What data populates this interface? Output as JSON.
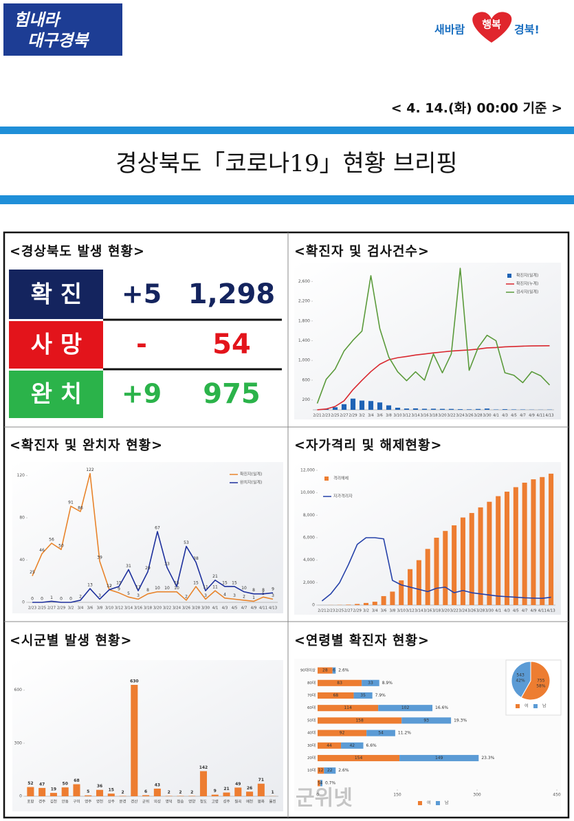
{
  "header": {
    "logo_left": [
      "힘내라",
      "대구경북"
    ],
    "logo_right": [
      "새바람",
      "행복",
      "경북!"
    ],
    "date": "< 4. 14.(화) 00:00 기준 >",
    "title": "경상북도「코로나19」현황 브리핑",
    "watermark": "군위넷"
  },
  "status": {
    "title": "<경상북도 발생 현황>",
    "rows": [
      {
        "label": "확 진",
        "change": "+5",
        "total": "1,298"
      },
      {
        "label": "사 망",
        "change": "-",
        "total": "54"
      },
      {
        "label": "완 치",
        "change": "+9",
        "total": "975"
      }
    ]
  },
  "chart_data": [
    {
      "type": "bar",
      "title": "<확진자 및 검사건수>",
      "categories": [
        "2/21",
        "2/23",
        "2/25",
        "2/27",
        "2/29",
        "3/2",
        "3/4",
        "3/6",
        "3/8",
        "3/10",
        "3/12",
        "3/14",
        "3/16",
        "3/18",
        "3/20",
        "3/22",
        "3/24",
        "3/26",
        "3/28",
        "3/30",
        "4/1",
        "4/3",
        "4/5",
        "4/7",
        "4/9",
        "4/11",
        "4/13"
      ],
      "series": [
        {
          "name": "확진자(일계)",
          "type": "bar",
          "color": "#1f63b5",
          "values": [
            1,
            15,
            52,
            114,
            227,
            187,
            178,
            149,
            90,
            42,
            26,
            29,
            21,
            22,
            19,
            18,
            13,
            10,
            17,
            25,
            7,
            13,
            8,
            7,
            4,
            3,
            5
          ]
        },
        {
          "name": "확진자(누계)",
          "type": "line",
          "color": "#d9272e",
          "values": [
            1,
            16,
            68,
            182,
            409,
            596,
            774,
            923,
            1013,
            1055,
            1081,
            1110,
            1131,
            1153,
            1172,
            1190,
            1203,
            1213,
            1230,
            1255,
            1262,
            1275,
            1283,
            1290,
            1294,
            1297,
            1298
          ]
        },
        {
          "name": "검사자(일계)",
          "type": "line",
          "color": "#5a9a3a",
          "values": [
            130,
            617,
            825,
            1192,
            1409,
            1594,
            2718,
            1646,
            1070,
            771,
            590,
            770,
            600,
            1131,
            750,
            1133,
            2867,
            800,
            1260,
            1510,
            1400,
            750,
            700,
            550,
            774,
            690,
            502
          ]
        }
      ],
      "ylim": [
        0,
        2800
      ],
      "yticks": [
        200,
        600,
        {
          "value": 1000,
          "label": "1,000"
        },
        {
          "value": 1400,
          "label": "1,400"
        },
        {
          "value": 1800,
          "label": "1,800"
        },
        {
          "value": 2200,
          "label": "2,200"
        },
        {
          "value": 2600,
          "label": "2,600"
        }
      ],
      "legend": "upper right",
      "data_labels": false,
      "grid": false
    },
    {
      "type": "line",
      "title": "<확진자 및 완치자 현황>",
      "categories": [
        "2/23",
        "2/25",
        "2/27",
        "2/29",
        "3/2",
        "3/4",
        "3/6",
        "3/8",
        "3/10",
        "3/12",
        "3/14",
        "3/16",
        "3/18",
        "3/20",
        "3/22",
        "3/24",
        "3/26",
        "3/28",
        "3/30",
        "4/1",
        "4/3",
        "4/5",
        "4/7",
        "4/9",
        "4/11",
        "4/13"
      ],
      "series": [
        {
          "name": "확진자(일계)",
          "type": "line",
          "color": "#e8832a",
          "values": [
            25,
            46,
            56,
            50,
            91,
            86,
            122,
            39,
            12,
            9,
            5,
            3,
            8,
            10,
            10,
            10,
            2,
            15,
            3,
            11,
            4,
            3,
            2,
            1,
            5,
            3
          ]
        },
        {
          "name": "완치자(일계)",
          "type": "line",
          "color": "#1c2f9c",
          "values": [
            0,
            0,
            1,
            0,
            0,
            2,
            13,
            3,
            12,
            15,
            31,
            11,
            29,
            67,
            33,
            15,
            53,
            38,
            11,
            21,
            15,
            15,
            10,
            8,
            8,
            9
          ]
        }
      ],
      "ylim": [
        0,
        125
      ],
      "yticks": [
        0,
        40,
        80,
        120
      ],
      "legend": "upper right",
      "data_labels": true,
      "grid": false
    },
    {
      "type": "bar",
      "title": "<자가격리 및 해제현황>",
      "categories": [
        "2/21",
        "2/23",
        "2/25",
        "2/27",
        "2/29",
        "3/2",
        "3/4",
        "3/6",
        "3/8",
        "3/10",
        "3/12",
        "3/14",
        "3/16",
        "3/18",
        "3/20",
        "3/22",
        "3/24",
        "3/26",
        "3/28",
        "3/30",
        "4/1",
        "4/3",
        "4/5",
        "4/7",
        "4/9",
        "4/11",
        "4/13"
      ],
      "series": [
        {
          "name": "격리해제",
          "type": "bar",
          "color": "#ed7d31",
          "values": [
            0,
            10,
            20,
            40,
            100,
            190,
            300,
            800,
            1200,
            2200,
            3200,
            4000,
            5000,
            6000,
            6600,
            7100,
            7800,
            8200,
            8700,
            9200,
            9700,
            10100,
            10500,
            10900,
            11200,
            11400,
            11702
          ]
        },
        {
          "name": "자가격리자",
          "type": "line",
          "color": "#2440a8",
          "values": [
            365,
            1000,
            2000,
            3600,
            5400,
            6000,
            6000,
            5900,
            2200,
            1800,
            1600,
            1400,
            1200,
            1500,
            1600,
            1100,
            1300,
            1100,
            1000,
            900,
            800,
            750,
            700,
            650,
            620,
            600,
            700
          ]
        }
      ],
      "ylim": [
        0,
        12000
      ],
      "yticks": [
        0,
        {
          "value": 2000,
          "label": "2,000"
        },
        {
          "value": 4000,
          "label": "4,000"
        },
        {
          "value": 6000,
          "label": "6,000"
        },
        {
          "value": 8000,
          "label": "8,000"
        },
        {
          "value": 10000,
          "label": "10,000"
        },
        {
          "value": 12000,
          "label": "12,000"
        }
      ],
      "legend": "upper left",
      "data_labels": false,
      "grid": false
    },
    {
      "type": "bar",
      "title": "<시군별 발생 현황>",
      "categories": [
        "포항",
        "경주",
        "김천",
        "안동",
        "구미",
        "영주",
        "영천",
        "상주",
        "문경",
        "경산",
        "군위",
        "의성",
        "영덕",
        "청송",
        "영양",
        "청도",
        "고령",
        "성주",
        "칠곡",
        "예천",
        "봉화",
        "울진"
      ],
      "series": [
        {
          "name": "시군별",
          "type": "bar",
          "color": "#ed7d31",
          "values": [
            52,
            47,
            19,
            50,
            68,
            5,
            36,
            15,
            2,
            630,
            6,
            43,
            2,
            2,
            2,
            142,
            9,
            21,
            49,
            26,
            71,
            1
          ]
        }
      ],
      "ylim": [
        0,
        700
      ],
      "yticks": [
        0,
        300,
        600
      ],
      "legend": "none",
      "data_labels": true,
      "grid": false
    },
    {
      "type": "barh",
      "title": "<연령별 확진자 현황>",
      "categories": [
        "90대이상",
        "80대",
        "70대",
        "60대",
        "50대",
        "40대",
        "30대",
        "20대",
        "10대",
        null
      ],
      "series": [
        {
          "name": "여",
          "color": "#ed7d31",
          "values": [
            28,
            83,
            68,
            114,
            158,
            92,
            44,
            154,
            12,
            5
          ]
        },
        {
          "name": "남",
          "color": "#5b9bd5",
          "values": [
            6,
            33,
            35,
            102,
            93,
            54,
            42,
            149,
            22,
            4
          ]
        }
      ],
      "shares": [
        "2.6%",
        "8.9%",
        "7.9%",
        "16.6%",
        "19.3%",
        "11.2%",
        "6.6%",
        "23.3%",
        "2.6%",
        "0.7%"
      ],
      "xlim": [
        0,
        450
      ],
      "xticks": [
        0,
        150,
        300,
        450
      ],
      "legend": "lower center"
    },
    {
      "type": "pie",
      "categories": [
        "여",
        "남"
      ],
      "values": [
        755,
        543
      ],
      "percents": [
        "58%",
        "42%"
      ],
      "colors": [
        "#ed7d31",
        "#5b9bd5"
      ],
      "legend": "lower center"
    }
  ]
}
